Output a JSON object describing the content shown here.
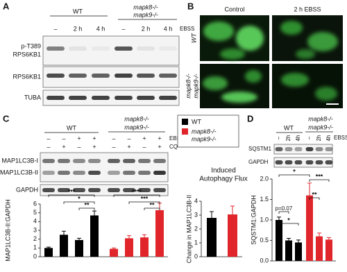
{
  "panel_a": {
    "label": "A",
    "wt": "WT",
    "mutant": [
      "mapk8-/-",
      "mapk9-/-"
    ],
    "lanes": [
      "–",
      "2 h",
      "4 h",
      "–",
      "2 h",
      "4 h"
    ],
    "treatment": "EBSS",
    "rows": [
      [
        "p-T389",
        "RPS6KB1"
      ],
      [
        "RPS6KB1"
      ],
      [
        "TUBA"
      ]
    ]
  },
  "panel_b": {
    "label": "B",
    "columns": [
      "Control",
      "2 h EBSS"
    ],
    "rows": [
      [
        "WT"
      ],
      [
        "mapk8-/-",
        "mapk9-/-"
      ]
    ]
  },
  "panel_c": {
    "label": "C",
    "wt": "WT",
    "mutant": [
      "mapk8-/-",
      "mapk9-/-"
    ],
    "ebss_signs": [
      "–",
      "–",
      "+",
      "+",
      "–",
      "–",
      "+",
      "+"
    ],
    "cq_signs": [
      "–",
      "+",
      "–",
      "+",
      "–",
      "+",
      "–",
      "+"
    ],
    "treatments": [
      "EBSS",
      "CQ"
    ],
    "rows": [
      "MAP1LC3B-I",
      "MAP1LC3B-II",
      "GAPDH"
    ],
    "legend": [
      {
        "name": [
          "WT"
        ],
        "color": "#000000"
      },
      {
        "name": [
          "mapk8-/-",
          "mapk9-/-"
        ],
        "color": "#e0262b"
      }
    ]
  },
  "panel_d": {
    "label": "D",
    "wt": "WT",
    "mutant": [
      "mapk8-/-",
      "mapk9-/-"
    ],
    "lanes": [
      "–",
      "2h",
      "4h",
      "–",
      "2h",
      "4h"
    ],
    "treatment": "EBSS",
    "rows": [
      "SQSTM1",
      "GAPDH"
    ]
  },
  "chart_data": [
    {
      "type": "bar",
      "y_label": "MAP1LC3B-II:GAPDH",
      "values": [
        1.0,
        2.5,
        1.9,
        4.7,
        0.9,
        2.1,
        2.2,
        5.3
      ],
      "errors": [
        0.1,
        0.4,
        0.2,
        0.5,
        0.1,
        0.3,
        0.3,
        0.8
      ],
      "colors": [
        "#000000",
        "#000000",
        "#000000",
        "#000000",
        "#e0262b",
        "#e0262b",
        "#e0262b",
        "#e0262b"
      ],
      "ylim": [
        0,
        6
      ],
      "yticks": [
        0,
        1,
        2,
        3,
        4,
        5,
        6
      ],
      "annotations": [
        "***",
        "*",
        "**",
        "****",
        "***",
        "**"
      ]
    },
    {
      "type": "bar",
      "title": [
        "Induced",
        "Autophagy Flux"
      ],
      "y_label": "Change in MAP1LC3B-II",
      "values": [
        2.8,
        3.05
      ],
      "errors": [
        0.45,
        0.6
      ],
      "colors": [
        "#000000",
        "#e0262b"
      ],
      "ylim": [
        0,
        4
      ],
      "yticks": [
        0,
        1,
        2,
        3,
        4
      ]
    },
    {
      "type": "bar",
      "y_label": "SQSTM1:GAPDH",
      "values": [
        1.0,
        0.5,
        0.45,
        1.6,
        0.6,
        0.52
      ],
      "errors": [
        0.07,
        0.05,
        0.06,
        0.3,
        0.08,
        0.05
      ],
      "colors": [
        "#000000",
        "#000000",
        "#000000",
        "#e0262b",
        "#e0262b",
        "#e0262b"
      ],
      "ylim": [
        0,
        2
      ],
      "yticks": [
        {
          "value": 0,
          "label": "0.0"
        },
        0.5,
        {
          "value": 1,
          "label": "1.0"
        },
        1.5,
        {
          "value": 2,
          "label": "2.0"
        }
      ],
      "annotations": [
        "p=0.07",
        "*",
        "*",
        "***",
        "**"
      ]
    }
  ]
}
